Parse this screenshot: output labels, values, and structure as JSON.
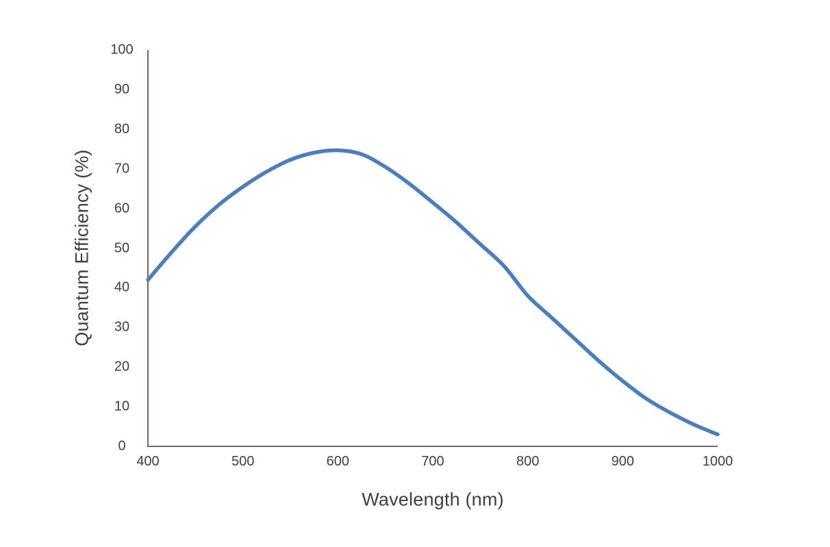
{
  "page": {
    "background": "#ffffff"
  },
  "chart_data": {
    "type": "line",
    "title": "",
    "xlabel": "Wavelength (nm)",
    "ylabel": "Quantum Efficiency (%)",
    "xlim": [
      400,
      1000
    ],
    "ylim": [
      0,
      100
    ],
    "x_ticks": [
      400,
      500,
      600,
      700,
      800,
      900,
      1000
    ],
    "y_ticks": [
      0,
      10,
      20,
      30,
      40,
      50,
      60,
      70,
      80,
      90,
      100
    ],
    "grid": false,
    "legend_position": "none",
    "series": [
      {
        "name": "quantum-efficiency",
        "color": "#4a7ebc",
        "x": [
          400,
          425,
          450,
          475,
          500,
          525,
          550,
          575,
          600,
          625,
          650,
          675,
          700,
          725,
          750,
          775,
          800,
          825,
          850,
          875,
          900,
          925,
          950,
          975,
          1000
        ],
        "y": [
          42,
          49,
          55.5,
          61,
          65.5,
          69.3,
          72.3,
          74.1,
          74.7,
          73.7,
          70.5,
          66.3,
          61.5,
          56.5,
          51,
          45.5,
          38,
          32.5,
          27,
          21.5,
          16.5,
          12,
          8.5,
          5.5,
          3
        ]
      }
    ],
    "styles": {
      "axis_color": "#6b6b6b",
      "text_color": "#3f3f3f",
      "line_width": 5.5
    }
  }
}
